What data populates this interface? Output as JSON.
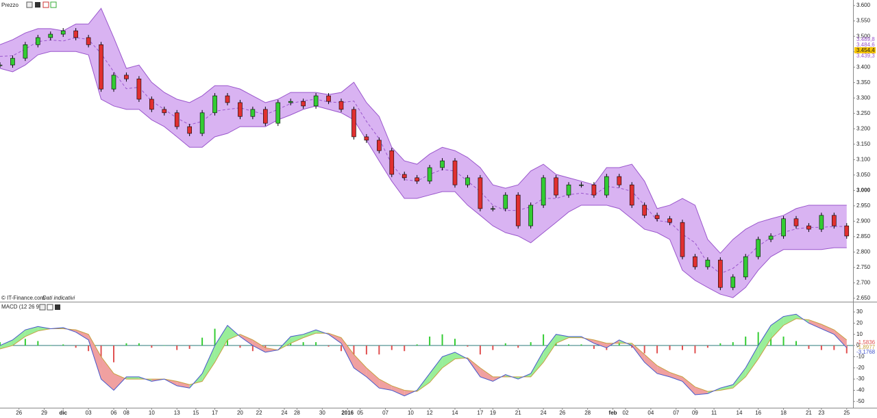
{
  "chart_data": [
    {
      "type": "candlestick",
      "title": "Prezzo",
      "source": "© IT-Finance.com",
      "note": "Dati indicativi",
      "x": [
        0,
        2,
        4,
        6,
        8,
        10,
        12,
        14,
        16,
        18,
        20,
        22,
        24,
        26,
        28,
        30,
        32,
        34,
        36,
        38,
        40,
        42,
        44,
        46,
        48,
        50,
        52,
        54,
        56,
        58,
        60,
        62,
        64,
        66,
        68,
        70,
        72,
        74,
        76,
        78,
        80,
        82,
        84,
        86,
        88,
        90,
        92,
        94,
        96,
        98,
        100,
        102,
        104,
        106,
        108,
        110,
        112,
        114,
        116,
        118,
        120,
        122,
        124,
        126,
        128,
        130,
        132,
        134
      ],
      "close": [
        3.407,
        3.429,
        3.473,
        3.496,
        3.507,
        3.518,
        3.496,
        3.473,
        3.329,
        3.374,
        3.362,
        3.296,
        3.263,
        3.252,
        3.207,
        3.185,
        3.252,
        3.307,
        3.285,
        3.24,
        3.263,
        3.218,
        3.285,
        3.289,
        3.274,
        3.307,
        3.289,
        3.263,
        3.174,
        3.163,
        3.129,
        3.052,
        3.041,
        3.03,
        3.074,
        3.096,
        3.018,
        3.041,
        2.941,
        2.941,
        2.985,
        2.885,
        2.952,
        3.041,
        2.985,
        3.018,
        3.018,
        2.985,
        3.045,
        3.018,
        2.952,
        2.919,
        2.908,
        2.896,
        2.785,
        2.752,
        2.774,
        2.685,
        2.719,
        2.785,
        2.841,
        2.852,
        2.908,
        2.885,
        2.874,
        2.919,
        2.885,
        2.852
      ],
      "upper": [
        3.473,
        3.489,
        3.511,
        3.525,
        3.525,
        3.518,
        3.54,
        3.54,
        3.591,
        3.496,
        3.396,
        3.407,
        3.351,
        3.318,
        3.296,
        3.285,
        3.307,
        3.34,
        3.34,
        3.329,
        3.307,
        3.285,
        3.296,
        3.318,
        3.318,
        3.318,
        3.311,
        3.318,
        3.351,
        3.285,
        3.24,
        3.14,
        3.096,
        3.085,
        3.118,
        3.14,
        3.129,
        3.107,
        3.074,
        3.018,
        3.007,
        3.018,
        3.063,
        3.085,
        3.052,
        3.041,
        3.03,
        3.018,
        3.074,
        3.074,
        3.085,
        3.03,
        2.941,
        2.952,
        2.974,
        2.952,
        2.841,
        2.796,
        2.841,
        2.874,
        2.896,
        2.908,
        2.919,
        2.941,
        2.952,
        2.952,
        2.952,
        2.952
      ],
      "middle": [
        3.435,
        3.437,
        3.459,
        3.483,
        3.488,
        3.485,
        3.496,
        3.49,
        3.444,
        3.385,
        3.33,
        3.335,
        3.29,
        3.263,
        3.235,
        3.213,
        3.224,
        3.257,
        3.263,
        3.268,
        3.257,
        3.246,
        3.263,
        3.282,
        3.291,
        3.296,
        3.287,
        3.285,
        3.29,
        3.224,
        3.168,
        3.085,
        3.035,
        3.03,
        3.052,
        3.068,
        3.063,
        3.03,
        2.997,
        2.952,
        2.935,
        2.935,
        2.947,
        2.974,
        2.974,
        2.986,
        2.991,
        2.985,
        3.013,
        3.008,
        2.997,
        2.952,
        2.902,
        2.897,
        2.858,
        2.83,
        2.763,
        2.73,
        2.747,
        2.78,
        2.819,
        2.847,
        2.864,
        2.875,
        2.88,
        2.88,
        2.883,
        2.883
      ],
      "lower": [
        3.396,
        3.385,
        3.407,
        3.44,
        3.451,
        3.451,
        3.451,
        3.44,
        3.296,
        3.274,
        3.263,
        3.263,
        3.229,
        3.207,
        3.174,
        3.14,
        3.14,
        3.174,
        3.185,
        3.207,
        3.207,
        3.207,
        3.229,
        3.245,
        3.263,
        3.274,
        3.263,
        3.252,
        3.229,
        3.163,
        3.096,
        3.03,
        2.974,
        2.974,
        2.985,
        2.996,
        2.996,
        2.952,
        2.919,
        2.885,
        2.863,
        2.852,
        2.83,
        2.863,
        2.896,
        2.93,
        2.952,
        2.952,
        2.952,
        2.941,
        2.908,
        2.874,
        2.863,
        2.841,
        2.741,
        2.708,
        2.685,
        2.663,
        2.652,
        2.685,
        2.741,
        2.785,
        2.808,
        2.808,
        2.808,
        2.808,
        2.814,
        2.814
      ],
      "up_color": "#33cc33",
      "down_color": "#e03030",
      "band_color": "#cc99ee",
      "band_line": "#9955cc",
      "xlim": [
        0,
        135
      ],
      "ylim": [
        2.641,
        3.618
      ],
      "yticks": [
        {
          "value": 3.6,
          "label": "3.600"
        },
        {
          "value": 3.55,
          "label": "3.550"
        },
        {
          "value": 3.5,
          "label": "3.500"
        },
        {
          "value": 3.45,
          "label": "3.450"
        },
        {
          "value": 3.4,
          "label": "3.400"
        },
        {
          "value": 3.35,
          "label": "3.350"
        },
        {
          "value": 3.3,
          "label": "3.300"
        },
        {
          "value": 3.25,
          "label": "3.250"
        },
        {
          "value": 3.2,
          "label": "3.200"
        },
        {
          "value": 3.15,
          "label": "3.150"
        },
        {
          "value": 3.1,
          "label": "3.100"
        },
        {
          "value": 3.05,
          "label": "3.050"
        },
        {
          "value": 3.0,
          "label": "3.000"
        },
        {
          "value": 2.95,
          "label": "2.950"
        },
        {
          "value": 2.9,
          "label": "2.900"
        },
        {
          "value": 2.85,
          "label": "2.850"
        },
        {
          "value": 2.8,
          "label": "2.800"
        },
        {
          "value": 2.75,
          "label": "2.750"
        },
        {
          "value": 2.7,
          "label": "2.700"
        },
        {
          "value": 2.65,
          "label": "2.650"
        }
      ],
      "last_labels": [
        "3.489,8",
        "3.484,6",
        "3.454,4",
        "3.439,3"
      ]
    },
    {
      "type": "macd",
      "title": "MACD (12 26 9)",
      "macd": [
        0,
        5,
        14,
        17,
        15,
        16,
        12,
        5,
        -30,
        -40,
        -28,
        -28,
        -32,
        -30,
        -36,
        -38,
        -25,
        0,
        18,
        8,
        0,
        -6,
        -4,
        8,
        10,
        14,
        10,
        2,
        -20,
        -28,
        -38,
        -40,
        -45,
        -40,
        -25,
        -10,
        -6,
        -12,
        -28,
        -32,
        -26,
        -30,
        -25,
        -5,
        10,
        8,
        8,
        2,
        -2,
        5,
        0,
        -15,
        -25,
        -28,
        -32,
        -44,
        -43,
        -38,
        -35,
        -20,
        0,
        18,
        26,
        28,
        20,
        15,
        10,
        -2
      ],
      "signal": [
        -3,
        0,
        8,
        13,
        15,
        15,
        14,
        10,
        -10,
        -25,
        -30,
        -30,
        -30,
        -30,
        -32,
        -35,
        -32,
        -15,
        5,
        10,
        5,
        -2,
        -4,
        2,
        7,
        11,
        11,
        7,
        -8,
        -20,
        -30,
        -36,
        -40,
        -41,
        -33,
        -20,
        -12,
        -11,
        -20,
        -28,
        -28,
        -28,
        -28,
        -15,
        2,
        7,
        7,
        5,
        2,
        2,
        2,
        -8,
        -18,
        -24,
        -28,
        -37,
        -41,
        -40,
        -38,
        -28,
        -12,
        6,
        18,
        24,
        23,
        19,
        14,
        5
      ],
      "histogram": [
        3,
        5,
        6,
        4,
        0,
        1,
        -2,
        -5,
        -20,
        -15,
        2,
        2,
        -2,
        0,
        -4,
        -3,
        7,
        15,
        13,
        -2,
        -5,
        -4,
        0,
        6,
        3,
        3,
        -1,
        -5,
        -12,
        -8,
        -8,
        -4,
        -5,
        1,
        8,
        10,
        6,
        -1,
        -8,
        -4,
        2,
        -2,
        3,
        10,
        8,
        1,
        1,
        -3,
        -4,
        3,
        -2,
        -7,
        -7,
        -4,
        -4,
        -7,
        -2,
        2,
        3,
        8,
        12,
        12,
        8,
        4,
        -3,
        -4,
        -4,
        -7
      ],
      "macd_color": "#4455cc",
      "signal_color": "#c8a040",
      "fill_up": "#99ee99",
      "fill_down": "#f0a0a0",
      "hist_up": "#33cc33",
      "hist_down": "#e05050",
      "ylim": [
        -55,
        35.5
      ],
      "yticks": [
        30,
        20,
        10,
        0,
        -10,
        -20,
        -30,
        -40,
        -50
      ],
      "xlim": [
        0,
        135
      ],
      "xticks": [
        {
          "value": 3,
          "label": "26"
        },
        {
          "value": 7,
          "label": "29"
        },
        {
          "value": 10,
          "label": "dic"
        },
        {
          "value": 14,
          "label": "03"
        },
        {
          "value": 18,
          "label": "06"
        },
        {
          "value": 20,
          "label": "08"
        },
        {
          "value": 24,
          "label": "10"
        },
        {
          "value": 28,
          "label": "13"
        },
        {
          "value": 31,
          "label": "15"
        },
        {
          "value": 34,
          "label": "17"
        },
        {
          "value": 38,
          "label": "20"
        },
        {
          "value": 41,
          "label": "22"
        },
        {
          "value": 45,
          "label": "24"
        },
        {
          "value": 47,
          "label": "28"
        },
        {
          "value": 51,
          "label": "30"
        },
        {
          "value": 55,
          "label": "2016"
        },
        {
          "value": 57,
          "label": "05"
        },
        {
          "value": 61,
          "label": "07"
        },
        {
          "value": 65,
          "label": "10"
        },
        {
          "value": 68,
          "label": "12"
        },
        {
          "value": 72,
          "label": "14"
        },
        {
          "value": 76,
          "label": "17"
        },
        {
          "value": 78,
          "label": "19"
        },
        {
          "value": 82,
          "label": "21"
        },
        {
          "value": 86,
          "label": "24"
        },
        {
          "value": 89,
          "label": "26"
        },
        {
          "value": 93,
          "label": "28"
        },
        {
          "value": 97,
          "label": "feb"
        },
        {
          "value": 99,
          "label": "02"
        },
        {
          "value": 103,
          "label": "04"
        },
        {
          "value": 107,
          "label": "07"
        },
        {
          "value": 110,
          "label": "09"
        },
        {
          "value": 113,
          "label": "11"
        },
        {
          "value": 117,
          "label": "14"
        },
        {
          "value": 120,
          "label": "16"
        },
        {
          "value": 124,
          "label": "18"
        },
        {
          "value": 128,
          "label": "21"
        },
        {
          "value": 130,
          "label": "23"
        },
        {
          "value": 134,
          "label": "25"
        }
      ],
      "last_labels": [
        "-1,5836",
        "-1,8977",
        "-3,1768"
      ]
    }
  ]
}
